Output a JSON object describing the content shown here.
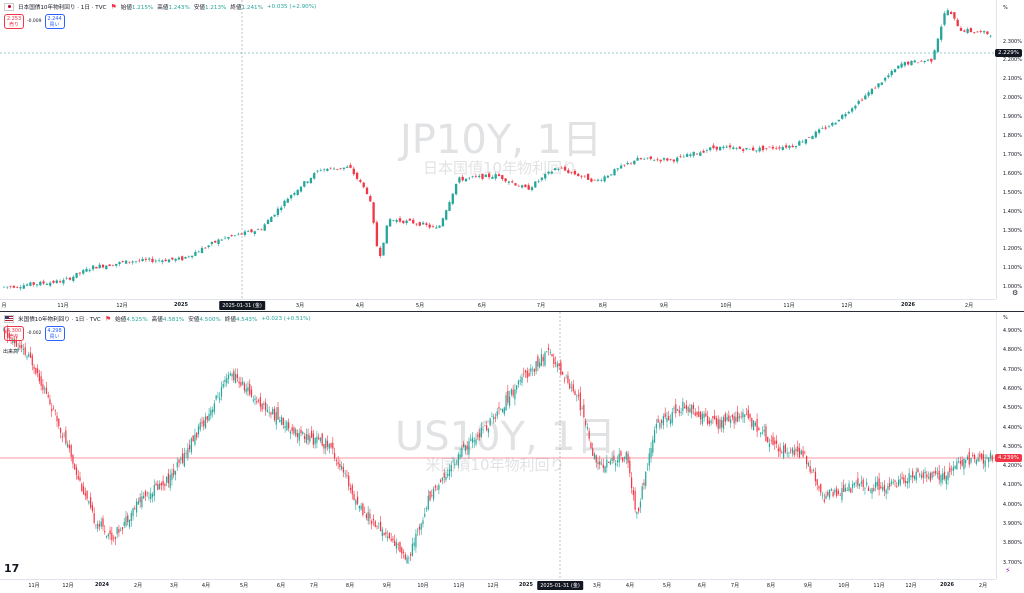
{
  "top": {
    "title": "日本国債10年物利回り · 1日 · TVC",
    "ohlc": {
      "open_label": "始値",
      "open": "1.215%",
      "high_label": "高値",
      "high": "1.243%",
      "low_label": "安値",
      "low": "1.213%",
      "close_label": "終値",
      "close": "1.241%",
      "change": "+0.035 (+2.90%)"
    },
    "sell": {
      "price": "2.253",
      "label": "売り"
    },
    "spread": "-0.009",
    "buy": {
      "price": "2.244",
      "label": "買い"
    },
    "watermark_symbol": "JP10Y, 1日",
    "watermark_name": "日本国債10年物利回り",
    "pct_label": "%",
    "current_price": "2.229%",
    "y_labels": [
      "2.300%",
      "2.200%",
      "2.100%",
      "2.000%",
      "1.900%",
      "1.800%",
      "1.700%",
      "1.600%",
      "1.500%",
      "1.400%",
      "1.300%",
      "1.200%",
      "1.100%",
      "1.000%"
    ],
    "x_labels": [
      "月",
      "11月",
      "12月",
      "2025",
      "2月",
      "3月",
      "4月",
      "5月",
      "6月",
      "7月",
      "8月",
      "9月",
      "10月",
      "11月",
      "12月",
      "2026",
      "2月"
    ],
    "cursor_date": "2025-01-31 (金)"
  },
  "bottom": {
    "title": "米国債10年物利回り · 1日 · TVC",
    "ohlc": {
      "open_label": "始値",
      "open": "4.525%",
      "high_label": "高値",
      "high": "4.581%",
      "low_label": "安値",
      "low": "4.500%",
      "close_label": "終値",
      "close": "4.543%",
      "change": "+0.023 (+0.51%)"
    },
    "sell": {
      "price": "4.300",
      "label": "売り"
    },
    "spread": "-0.002",
    "buy": {
      "price": "4.298",
      "label": "買い"
    },
    "note": "出来高",
    "watermark_symbol": "US10Y, 1日",
    "watermark_name": "米国債10年物利回り",
    "pct_label": "%",
    "current_price": "4.239%",
    "y_labels": [
      "4.900%",
      "4.800%",
      "4.700%",
      "4.600%",
      "4.500%",
      "4.400%",
      "4.300%",
      "4.200%",
      "4.100%",
      "4.000%",
      "3.900%",
      "3.800%",
      "3.700%"
    ],
    "x_labels": [
      "11月",
      "12月",
      "2024",
      "2月",
      "3月",
      "4月",
      "5月",
      "6月",
      "7月",
      "8月",
      "9月",
      "10月",
      "11月",
      "12月",
      "2025",
      "2月",
      "3月",
      "4月",
      "5月",
      "6月",
      "7月",
      "8月",
      "9月",
      "10月",
      "11月",
      "12月",
      "2026",
      "2月"
    ],
    "cursor_date": "2025-01-31 (金)"
  },
  "colors": {
    "up": "#26a69a",
    "down": "#f23645",
    "cursor": "#9598a1",
    "current_line_top": "#26a69a",
    "current_line_bottom": "#f23645"
  },
  "icons": {
    "flag": "flag-icon",
    "settings": "gear-icon",
    "logo": "tradingview-logo-icon",
    "lightning": "lightning-icon"
  }
}
